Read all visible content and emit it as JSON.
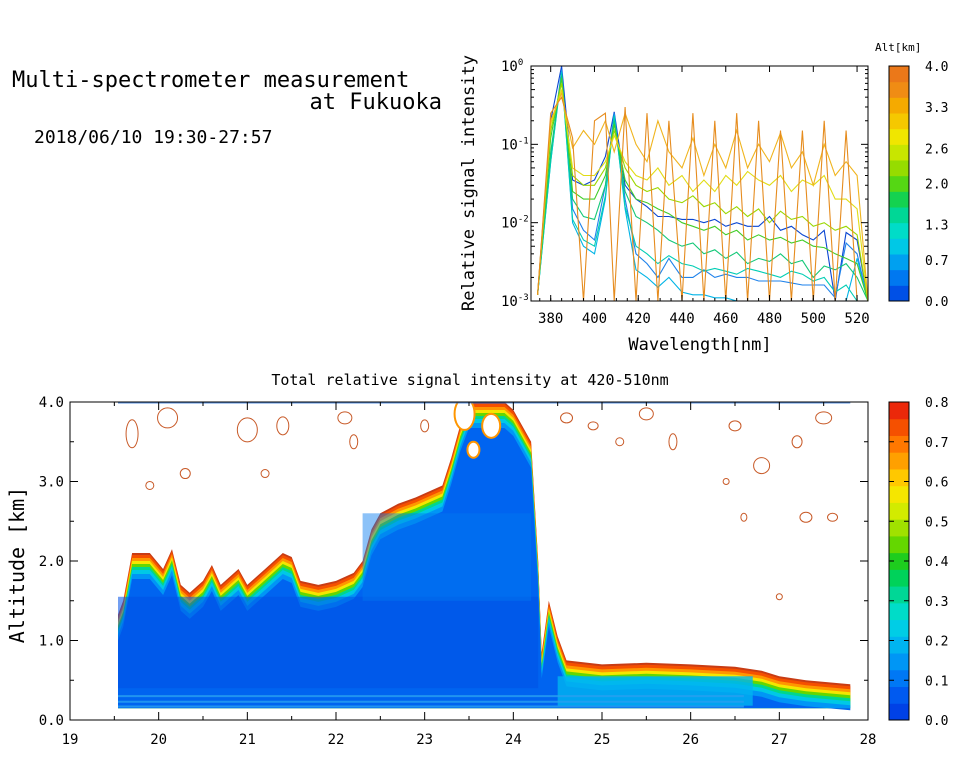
{
  "header": {
    "title_line1": "Multi-spectrometer measurement",
    "title_line2": "at Fukuoka",
    "datetime": "2018/06/10 19:30-27:57"
  },
  "chart_data": [
    {
      "type": "line",
      "xlabel": "Wavelength[nm]",
      "ylabel": "Relative signal intensity",
      "log_y": true,
      "xlim": [
        371,
        525
      ],
      "ylim": [
        0.001,
        1
      ],
      "x_ticks": [
        380,
        400,
        420,
        440,
        460,
        480,
        500,
        520
      ],
      "y_ticks": [
        {
          "v": 1,
          "base": "10",
          "exp": "0"
        },
        {
          "v": 0.1,
          "base": "10",
          "exp": "-1"
        },
        {
          "v": 0.01,
          "base": "10",
          "exp": "-2"
        },
        {
          "v": 0.001,
          "base": "10",
          "exp": "-3"
        }
      ],
      "x": [
        374,
        380,
        385,
        390,
        395,
        400,
        405,
        409,
        414,
        419,
        424,
        429,
        434,
        440,
        445,
        450,
        455,
        460,
        465,
        470,
        475,
        480,
        485,
        490,
        495,
        500,
        505,
        510,
        515,
        520,
        525
      ],
      "series": [
        {
          "alt": 0.05,
          "color": "#0a46d2",
          "values": [
            0.0012,
            0.2,
            1.0,
            0.035,
            0.03,
            0.035,
            0.07,
            0.26,
            0.03,
            0.02,
            0.016,
            0.012,
            0.012,
            0.011,
            0.011,
            0.01,
            0.011,
            0.009,
            0.01,
            0.009,
            0.009,
            0.012,
            0.008,
            0.009,
            0.007,
            0.006,
            0.008,
            0.001,
            0.0075,
            0.006,
            0.001
          ]
        },
        {
          "alt": 0.35,
          "color": "#1e82eb",
          "values": [
            0.0012,
            0.07,
            0.9,
            0.015,
            0.008,
            0.006,
            0.03,
            0.25,
            0.02,
            0.004,
            0.003,
            0.002,
            0.0035,
            0.002,
            0.002,
            0.0025,
            0.002,
            0.0022,
            0.002,
            0.002,
            0.0018,
            0.0018,
            0.0018,
            0.0017,
            0.0016,
            0.0016,
            0.0016,
            0.0011,
            0.0055,
            0.004,
            0.001
          ]
        },
        {
          "alt": 0.7,
          "color": "#00b4e6",
          "values": [
            0.0012,
            0.06,
            0.85,
            0.01,
            0.005,
            0.004,
            0.02,
            0.24,
            0.015,
            0.0025,
            0.002,
            0.0015,
            0.002,
            0.0013,
            0.0012,
            0.0012,
            0.0011,
            0.0011,
            0.001,
            0.001,
            0.001,
            0.001,
            0.001,
            0.001,
            0.001,
            0.001,
            0.001,
            0.001,
            0.001,
            0.0035,
            0.001
          ]
        },
        {
          "alt": 1.1,
          "color": "#00cdb4",
          "values": [
            0.0012,
            0.06,
            0.8,
            0.011,
            0.006,
            0.005,
            0.022,
            0.23,
            0.016,
            0.005,
            0.004,
            0.003,
            0.0038,
            0.003,
            0.0028,
            0.0024,
            0.0026,
            0.0024,
            0.0022,
            0.0026,
            0.0024,
            0.0022,
            0.002,
            0.0024,
            0.0022,
            0.0018,
            0.002,
            0.0013,
            0.0016,
            0.001,
            0.001
          ]
        },
        {
          "alt": 1.5,
          "color": "#14c878",
          "values": [
            0.0012,
            0.08,
            0.75,
            0.02,
            0.012,
            0.011,
            0.03,
            0.2,
            0.025,
            0.012,
            0.01,
            0.008,
            0.006,
            0.005,
            0.0055,
            0.004,
            0.0045,
            0.0035,
            0.0042,
            0.003,
            0.0035,
            0.0032,
            0.004,
            0.003,
            0.0033,
            0.002,
            0.0028,
            0.0025,
            0.003,
            0.002,
            0.001
          ]
        },
        {
          "alt": 2.0,
          "color": "#41cd28",
          "values": [
            0.0012,
            0.12,
            0.7,
            0.025,
            0.02,
            0.02,
            0.04,
            0.18,
            0.035,
            0.02,
            0.018,
            0.015,
            0.013,
            0.01,
            0.009,
            0.008,
            0.009,
            0.007,
            0.008,
            0.006,
            0.007,
            0.006,
            0.0065,
            0.0055,
            0.006,
            0.005,
            0.0048,
            0.004,
            0.0035,
            0.003,
            0.001
          ]
        },
        {
          "alt": 2.5,
          "color": "#9bd700",
          "values": [
            0.0012,
            0.15,
            0.6,
            0.04,
            0.03,
            0.03,
            0.05,
            0.15,
            0.05,
            0.03,
            0.025,
            0.028,
            0.02,
            0.018,
            0.022,
            0.016,
            0.018,
            0.013,
            0.016,
            0.012,
            0.015,
            0.01,
            0.014,
            0.011,
            0.012,
            0.009,
            0.01,
            0.008,
            0.009,
            0.007,
            0.001
          ]
        },
        {
          "alt": 3.0,
          "color": "#e1dc14",
          "values": [
            0.0012,
            0.18,
            0.5,
            0.05,
            0.04,
            0.04,
            0.06,
            0.13,
            0.06,
            0.04,
            0.035,
            0.05,
            0.03,
            0.04,
            0.025,
            0.035,
            0.025,
            0.04,
            0.03,
            0.045,
            0.035,
            0.03,
            0.04,
            0.025,
            0.035,
            0.03,
            0.04,
            0.02,
            0.02,
            0.015,
            0.001
          ]
        },
        {
          "alt": 3.4,
          "color": "#f0b41e",
          "values": [
            0.0012,
            0.2,
            0.45,
            0.09,
            0.15,
            0.1,
            0.2,
            0.08,
            0.25,
            0.1,
            0.06,
            0.2,
            0.08,
            0.05,
            0.12,
            0.04,
            0.1,
            0.05,
            0.15,
            0.05,
            0.1,
            0.06,
            0.14,
            0.05,
            0.08,
            0.03,
            0.1,
            0.04,
            0.06,
            0.04,
            0.001
          ]
        },
        {
          "alt": 3.8,
          "color": "#e68c1e",
          "values": [
            0.0012,
            0.25,
            0.4,
            0.12,
            0.001,
            0.2,
            0.25,
            0.001,
            0.3,
            0.001,
            0.25,
            0.001,
            0.2,
            0.001,
            0.25,
            0.001,
            0.2,
            0.001,
            0.25,
            0.001,
            0.2,
            0.001,
            0.15,
            0.001,
            0.15,
            0.001,
            0.2,
            0.001,
            0.15,
            0.001,
            0.001
          ]
        }
      ]
    },
    {
      "type": "heatmap",
      "title": "Total relative signal intensity at 420-510nm",
      "ylabel": "Altitude [km]",
      "xlim": [
        19,
        28
      ],
      "ylim": [
        0,
        4
      ],
      "x_ticks": [
        "19",
        "20",
        "21",
        "22",
        "23",
        "24",
        "25",
        "26",
        "27",
        "28"
      ],
      "y_ticks": [
        "0.0",
        "1.0",
        "2.0",
        "3.0",
        "4.0"
      ],
      "clim": [
        0,
        0.8
      ],
      "time_range": [
        19.5,
        27.8
      ],
      "boundary_profile": [
        [
          19.5,
          1.2
        ],
        [
          19.6,
          1.5
        ],
        [
          19.7,
          2.1
        ],
        [
          19.9,
          2.1
        ],
        [
          20.05,
          1.9
        ],
        [
          20.15,
          2.15
        ],
        [
          20.25,
          1.7
        ],
        [
          20.35,
          1.6
        ],
        [
          20.5,
          1.75
        ],
        [
          20.6,
          1.95
        ],
        [
          20.7,
          1.7
        ],
        [
          20.9,
          1.9
        ],
        [
          21.0,
          1.7
        ],
        [
          21.2,
          1.9
        ],
        [
          21.4,
          2.1
        ],
        [
          21.5,
          2.05
        ],
        [
          21.6,
          1.75
        ],
        [
          21.8,
          1.7
        ],
        [
          22.0,
          1.75
        ],
        [
          22.2,
          1.85
        ],
        [
          22.3,
          2.0
        ],
        [
          22.4,
          2.4
        ],
        [
          22.5,
          2.6
        ],
        [
          22.7,
          2.72
        ],
        [
          22.9,
          2.8
        ],
        [
          23.0,
          2.85
        ],
        [
          23.2,
          2.95
        ],
        [
          23.3,
          3.3
        ],
        [
          23.4,
          3.7
        ],
        [
          23.5,
          4.0
        ],
        [
          23.9,
          4.0
        ],
        [
          24.0,
          3.9
        ],
        [
          24.1,
          3.7
        ],
        [
          24.2,
          3.5
        ],
        [
          24.28,
          2.0
        ],
        [
          24.32,
          0.85
        ],
        [
          24.4,
          1.5
        ],
        [
          24.5,
          1.05
        ],
        [
          24.6,
          0.75
        ],
        [
          25.0,
          0.7
        ],
        [
          25.5,
          0.72
        ],
        [
          26.0,
          0.7
        ],
        [
          26.5,
          0.67
        ],
        [
          26.8,
          0.62
        ],
        [
          27.0,
          0.55
        ],
        [
          27.3,
          0.5
        ],
        [
          27.8,
          0.45
        ]
      ],
      "colorbar_ticks": [
        "0.0",
        "0.1",
        "0.2",
        "0.3",
        "0.4",
        "0.5",
        "0.6",
        "0.7",
        "0.8"
      ]
    }
  ],
  "top_colorbar": {
    "title": "Alt[km]",
    "range": [
      0,
      4
    ],
    "ticks": [
      "0.0",
      "0.7",
      "1.3",
      "2.0",
      "2.6",
      "3.3",
      "4.0"
    ],
    "colors": [
      "#0050e6",
      "#0078f0",
      "#00a0f0",
      "#00c8e6",
      "#00dcc8",
      "#00d796",
      "#14d250",
      "#55d714",
      "#96dc00",
      "#c8e600",
      "#f0e600",
      "#f5c800",
      "#f5aa00",
      "#f08c14",
      "#eb7819"
    ]
  },
  "heat_colorbar": {
    "colors": [
      "#0041e6",
      "#005af0",
      "#0078f5",
      "#0096f5",
      "#00b4f0",
      "#00cde6",
      "#00dcc8",
      "#00d796",
      "#00d25a",
      "#1ecd1e",
      "#64d700",
      "#a0e100",
      "#d2eb00",
      "#f5e600",
      "#ffc800",
      "#ffa000",
      "#ff7800",
      "#f55000",
      "#eb280a"
    ]
  }
}
